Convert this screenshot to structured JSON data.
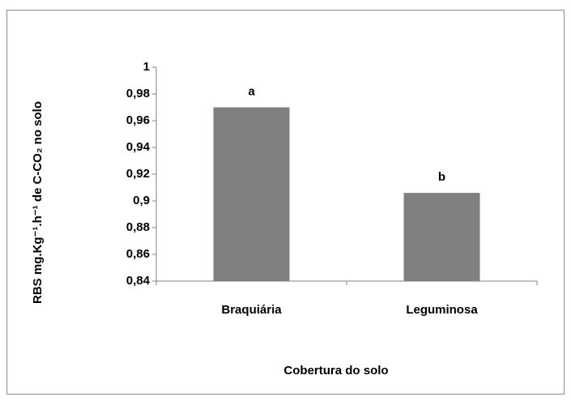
{
  "chart_data": {
    "type": "bar",
    "categories": [
      "Braquiária",
      "Leguminosa"
    ],
    "values": [
      0.97,
      0.906
    ],
    "annotations": [
      "a",
      "b"
    ],
    "color": "#808080",
    "x_label": "Cobertura do solo",
    "y_label": "RBS mg.Kg⁻¹.h⁻¹ de C-CO₂ no solo",
    "ylim": [
      0.84,
      1
    ],
    "yticks": [
      {
        "value": 0.84,
        "label": "0,84"
      },
      {
        "value": 0.86,
        "label": "0,86"
      },
      {
        "value": 0.88,
        "label": "0,88"
      },
      {
        "value": 0.9,
        "label": "0,9"
      },
      {
        "value": 0.92,
        "label": "0,92"
      },
      {
        "value": 0.94,
        "label": "0,94"
      },
      {
        "value": 0.96,
        "label": "0,96"
      },
      {
        "value": 0.98,
        "label": "0,98"
      },
      1
    ],
    "grid": false
  }
}
